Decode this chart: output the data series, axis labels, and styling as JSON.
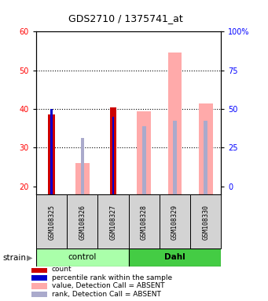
{
  "title": "GDS2710 / 1375741_at",
  "samples": [
    "GSM108325",
    "GSM108326",
    "GSM108327",
    "GSM108328",
    "GSM108329",
    "GSM108330"
  ],
  "ylim_left": [
    18,
    60
  ],
  "yticks_left": [
    20,
    30,
    40,
    50,
    60
  ],
  "yticks_right_labels": [
    "0",
    "25",
    "50",
    "75",
    "100%"
  ],
  "yticks_right_vals": [
    0,
    25,
    50,
    75,
    100
  ],
  "count_values": [
    38.5,
    null,
    40.5,
    null,
    null,
    null
  ],
  "rank_values": [
    40.0,
    null,
    38.0,
    null,
    null,
    null
  ],
  "absent_value_bars": [
    null,
    26.0,
    null,
    39.5,
    54.5,
    41.5
  ],
  "absent_rank_bars": [
    null,
    32.5,
    null,
    35.5,
    37.0,
    37.0
  ],
  "count_color": "#cc0000",
  "rank_color": "#0000cc",
  "absent_value_color": "#ffaaaa",
  "absent_rank_color": "#aaaacc",
  "bg_gray": "#d3d3d3",
  "control_color": "#aaffaa",
  "dahl_color": "#44cc44",
  "legend_items": [
    {
      "color": "#cc0000",
      "label": "count"
    },
    {
      "color": "#0000cc",
      "label": "percentile rank within the sample"
    },
    {
      "color": "#ffaaaa",
      "label": "value, Detection Call = ABSENT"
    },
    {
      "color": "#aaaacc",
      "label": "rank, Detection Call = ABSENT"
    }
  ]
}
